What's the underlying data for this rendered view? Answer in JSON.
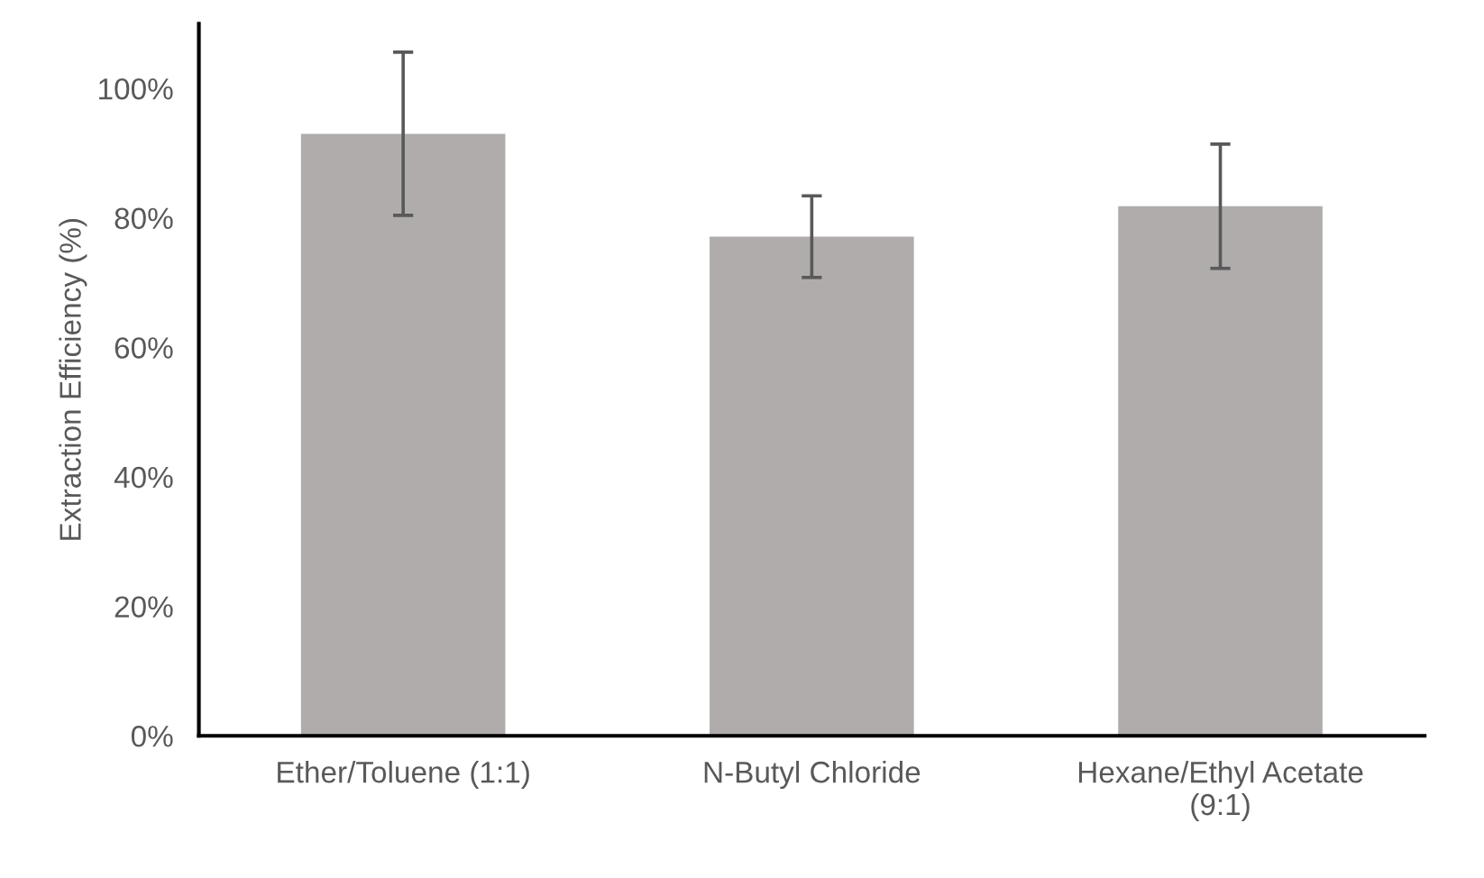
{
  "chart_data": {
    "type": "bar",
    "ylabel": "Extraction Efficiency (%)",
    "categories": [
      "Ether/Toluene (1:1)",
      "N-Butyl Chloride",
      "Hexane/Ethyl Acetate\n(9:1)"
    ],
    "values": [
      93.0,
      77.1,
      81.8
    ],
    "errors": [
      12.6,
      6.3,
      9.6
    ],
    "color": "#afacab",
    "ylim": [
      0,
      110
    ],
    "yticks": [
      {
        "value": 0,
        "label": "0%"
      },
      {
        "value": 20,
        "label": "20%"
      },
      {
        "value": 40,
        "label": "40%"
      },
      {
        "value": 60,
        "label": "60%"
      },
      {
        "value": 80,
        "label": "80%"
      },
      {
        "value": 100,
        "label": "100%"
      }
    ],
    "grid": false
  }
}
